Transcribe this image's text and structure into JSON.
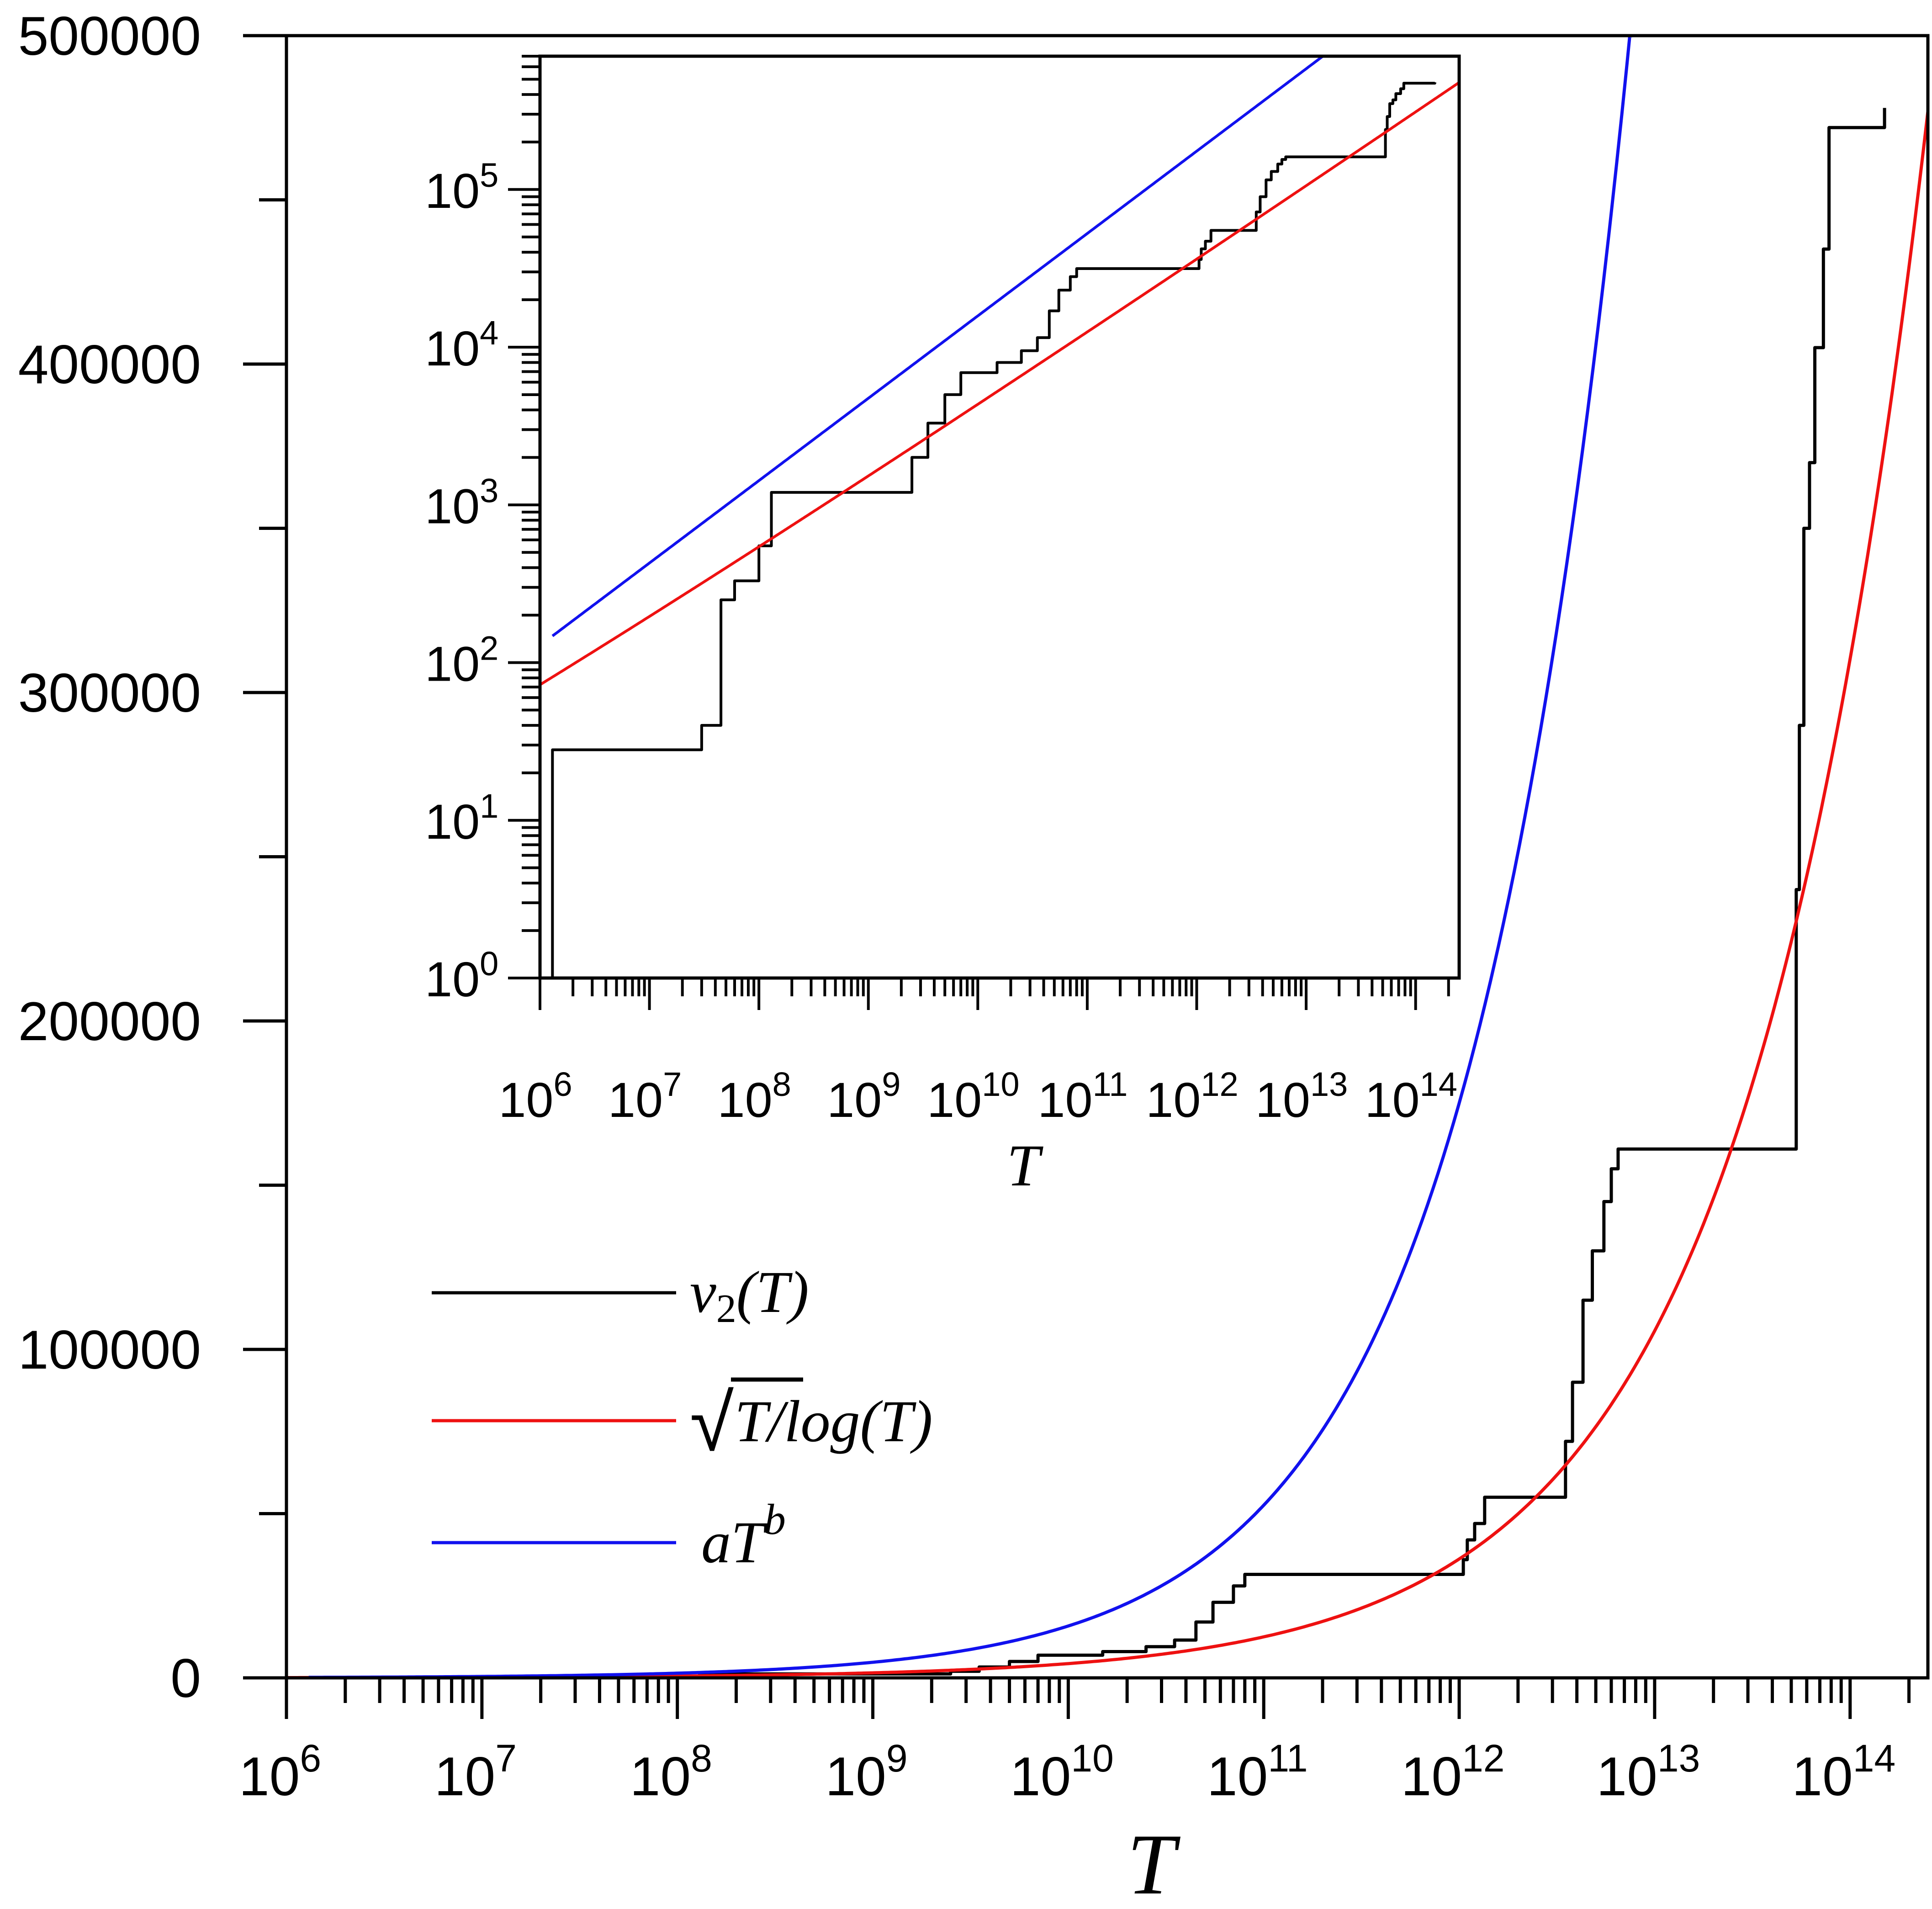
{
  "chart_data": [
    {
      "id": "main",
      "type": "line",
      "xscale": "log",
      "yscale": "linear",
      "xlim": [
        1000000,
        250000000000000
      ],
      "ylim": [
        0,
        500000
      ],
      "xlabel": "T",
      "ylabel": "",
      "x_ticks": [
        {
          "base": "10",
          "exp": "6",
          "value": 1000000.0
        },
        {
          "base": "10",
          "exp": "7",
          "value": 10000000.0
        },
        {
          "base": "10",
          "exp": "8",
          "value": 100000000.0
        },
        {
          "base": "10",
          "exp": "9",
          "value": 1000000000.0
        },
        {
          "base": "10",
          "exp": "10",
          "value": 10000000000.0
        },
        {
          "base": "10",
          "exp": "11",
          "value": 100000000000.0
        },
        {
          "base": "10",
          "exp": "12",
          "value": 1000000000000.0
        },
        {
          "base": "10",
          "exp": "13",
          "value": 10000000000000.0
        },
        {
          "base": "10",
          "exp": "14",
          "value": 100000000000000.0
        }
      ],
      "y_ticks": [
        {
          "label": "0",
          "value": 0
        },
        {
          "label": "100000",
          "value": 100000
        },
        {
          "label": "200000",
          "value": 200000
        },
        {
          "label": "300000",
          "value": 300000
        },
        {
          "label": "400000",
          "value": 400000
        },
        {
          "label": "500000",
          "value": 500000
        }
      ],
      "legend": {
        "placement": "center-left",
        "entries": [
          {
            "series": "nu2",
            "label_main": "ν",
            "label_sub": "2",
            "label_tail": "(T)",
            "color": "#000000"
          },
          {
            "series": "sqrt",
            "label_root": "√",
            "label_bar": "T",
            "label_tail": "/log(T)",
            "color": "#ee1111"
          },
          {
            "series": "fit",
            "label_main": "aT",
            "label_sup": "b",
            "color": "#1111ee"
          }
        ]
      },
      "series": [
        {
          "name": "nu2",
          "style": "step",
          "color": "#000000",
          "points": [
            [
              1300000.0,
              0
            ],
            [
              1300000.0,
              28
            ],
            [
              30000000.0,
              28
            ],
            [
              30000000.0,
              40
            ],
            [
              45000000.0,
              40
            ],
            [
              45000000.0,
              250
            ],
            [
              60000000.0,
              250
            ],
            [
              60000000.0,
              330
            ],
            [
              100000000.0,
              330
            ],
            [
              100000000.0,
              550
            ],
            [
              130000000.0,
              550
            ],
            [
              130000000.0,
              1200
            ],
            [
              2500000000.0,
              1200
            ],
            [
              2500000000.0,
              2000
            ],
            [
              3500000000.0,
              2000
            ],
            [
              3500000000.0,
              3300
            ],
            [
              5000000000.0,
              3300
            ],
            [
              5000000000.0,
              5000
            ],
            [
              7000000000.0,
              5000
            ],
            [
              7000000000.0,
              6900
            ],
            [
              15000000000.0,
              6900
            ],
            [
              15000000000.0,
              8000
            ],
            [
              25000000000.0,
              8000
            ],
            [
              25000000000.0,
              9500
            ],
            [
              35000000000.0,
              9500
            ],
            [
              35000000000.0,
              11500
            ],
            [
              45000000000.0,
              11500
            ],
            [
              45000000000.0,
              17000
            ],
            [
              55000000000.0,
              17000
            ],
            [
              55000000000.0,
              23000
            ],
            [
              70000000000.0,
              23000
            ],
            [
              70000000000.0,
              28000
            ],
            [
              80000000000.0,
              28000
            ],
            [
              80000000000.0,
              31500
            ],
            [
              1050000000000.0,
              31500
            ],
            [
              1050000000000.0,
              36000
            ],
            [
              1100000000000.0,
              36000
            ],
            [
              1100000000000.0,
              42000
            ],
            [
              1200000000000.0,
              42000
            ],
            [
              1200000000000.0,
              47000
            ],
            [
              1350000000000.0,
              47000
            ],
            [
              1350000000000.0,
              55000
            ],
            [
              3500000000000.0,
              55000
            ],
            [
              3500000000000.0,
              72000
            ],
            [
              3800000000000.0,
              72000
            ],
            [
              3800000000000.0,
              90000
            ],
            [
              4300000000000.0,
              90000
            ],
            [
              4300000000000.0,
              115000
            ],
            [
              4800000000000.0,
              115000
            ],
            [
              4800000000000.0,
              130000
            ],
            [
              5500000000000.0,
              130000
            ],
            [
              5500000000000.0,
              145000
            ],
            [
              6000000000000.0,
              145000
            ],
            [
              6000000000000.0,
              155000
            ],
            [
              6500000000000.0,
              155000
            ],
            [
              6500000000000.0,
              161000
            ],
            [
              53000000000000.0,
              161000
            ],
            [
              53000000000000.0,
              240000
            ],
            [
              55000000000000.0,
              240000
            ],
            [
              55000000000000.0,
              290000
            ],
            [
              58000000000000.0,
              290000
            ],
            [
              58000000000000.0,
              350000
            ],
            [
              62000000000000.0,
              350000
            ],
            [
              62000000000000.0,
              370000
            ],
            [
              66000000000000.0,
              370000
            ],
            [
              66000000000000.0,
              405000
            ],
            [
              73000000000000.0,
              405000
            ],
            [
              73000000000000.0,
              435000
            ],
            [
              78000000000000.0,
              435000
            ],
            [
              78000000000000.0,
              472000
            ],
            [
              150000000000000.0,
              472000
            ],
            [
              150000000000000.0,
              478000
            ]
          ]
        },
        {
          "name": "sqrt",
          "style": "curve",
          "color": "#ee1111",
          "function": "sqrt(T)/ln(T)",
          "x_range": [
            1000000,
            250000000000000
          ]
        },
        {
          "name": "fit",
          "style": "curve",
          "color": "#1111ee",
          "function": "a*T^b",
          "a": 0.0945,
          "b": 0.5223,
          "x_range": [
            1300000,
            150000000000000
          ]
        }
      ]
    },
    {
      "id": "inset",
      "type": "line",
      "xscale": "log",
      "yscale": "log",
      "xlim": [
        1000000,
        250000000000000
      ],
      "ylim": [
        1,
        700000
      ],
      "xlabel": "T",
      "ylabel": "",
      "x_ticks": [
        {
          "base": "10",
          "exp": "6",
          "value": 1000000.0
        },
        {
          "base": "10",
          "exp": "7",
          "value": 10000000.0
        },
        {
          "base": "10",
          "exp": "8",
          "value": 100000000.0
        },
        {
          "base": "10",
          "exp": "9",
          "value": 1000000000.0
        },
        {
          "base": "10",
          "exp": "10",
          "value": 10000000000.0
        },
        {
          "base": "10",
          "exp": "11",
          "value": 100000000000.0
        },
        {
          "base": "10",
          "exp": "12",
          "value": 1000000000000.0
        },
        {
          "base": "10",
          "exp": "13",
          "value": 10000000000000.0
        },
        {
          "base": "10",
          "exp": "14",
          "value": 100000000000000.0
        }
      ],
      "y_ticks": [
        {
          "base": "10",
          "exp": "0",
          "value": 1
        },
        {
          "base": "10",
          "exp": "1",
          "value": 10
        },
        {
          "base": "10",
          "exp": "2",
          "value": 100
        },
        {
          "base": "10",
          "exp": "3",
          "value": 1000
        },
        {
          "base": "10",
          "exp": "4",
          "value": 10000
        },
        {
          "base": "10",
          "exp": "5",
          "value": 100000
        }
      ]
    }
  ]
}
